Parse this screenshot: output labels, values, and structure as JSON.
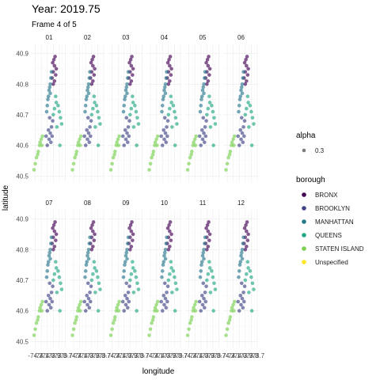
{
  "chart_data": {
    "type": "scatter",
    "title": "Year: 2019.75",
    "subtitle": "Frame 4 of 5",
    "xlabel": "longitude",
    "ylabel": "latitude",
    "facets": [
      "01",
      "02",
      "03",
      "04",
      "05",
      "06",
      "07",
      "08",
      "09",
      "10",
      "11",
      "12"
    ],
    "x_ticks": [
      "-74.2",
      "-74.1",
      "-74.0",
      "-73.9",
      "-73.8",
      "-73.7"
    ],
    "xlim": [
      -74.26,
      -73.68
    ],
    "y_ticks": [
      "40.5",
      "40.6",
      "40.7",
      "40.8",
      "40.9"
    ],
    "ylim": [
      40.48,
      40.93
    ],
    "grid": true,
    "legend_placement": "right",
    "alpha_legend": {
      "title": "alpha",
      "label": "0.3"
    },
    "legend": {
      "title": "borough",
      "entries": [
        {
          "name": "BRONX",
          "color": "#440154"
        },
        {
          "name": "BROOKLYN",
          "color": "#414487"
        },
        {
          "name": "MANHATTAN",
          "color": "#2a788e"
        },
        {
          "name": "QUEENS",
          "color": "#22a884"
        },
        {
          "name": "STATEN ISLAND",
          "color": "#7ad151"
        },
        {
          "name": "Unspecified",
          "color": "#fde725"
        }
      ]
    },
    "series": [
      {
        "name": "BRONX",
        "color": "#440154",
        "x": [
          -73.92,
          -73.9,
          -73.88,
          -73.86,
          -73.89,
          -73.91,
          -73.87,
          -73.85,
          -73.9,
          -73.88
        ],
        "y": [
          40.82,
          40.84,
          40.86,
          40.83,
          40.88,
          40.87,
          40.89,
          40.85,
          40.8,
          40.81
        ]
      },
      {
        "name": "BROOKLYN",
        "color": "#414487",
        "x": [
          -74.0,
          -73.97,
          -73.95,
          -73.93,
          -73.91,
          -73.98,
          -73.96,
          -73.94,
          -73.92,
          -74.02
        ],
        "y": [
          40.6,
          40.62,
          40.64,
          40.66,
          40.68,
          40.65,
          40.69,
          40.61,
          40.63,
          40.63
        ]
      },
      {
        "name": "MANHATTAN",
        "color": "#2a788e",
        "x": [
          -74.01,
          -74.0,
          -73.99,
          -73.98,
          -73.97,
          -73.96,
          -73.95,
          -73.94,
          -73.93,
          -73.95
        ],
        "y": [
          40.71,
          40.73,
          40.75,
          40.76,
          40.78,
          40.79,
          40.8,
          40.82,
          40.84,
          40.77
        ]
      },
      {
        "name": "QUEENS",
        "color": "#22a884",
        "x": [
          -73.9,
          -73.88,
          -73.85,
          -73.82,
          -73.8,
          -73.78,
          -73.76,
          -73.84,
          -73.86,
          -73.79
        ],
        "y": [
          40.7,
          40.72,
          40.74,
          40.73,
          40.71,
          40.69,
          40.67,
          40.66,
          40.76,
          40.6
        ]
      },
      {
        "name": "STATEN ISLAND",
        "color": "#7ad151",
        "x": [
          -74.15,
          -74.13,
          -74.1,
          -74.08,
          -74.2,
          -74.18,
          -74.12,
          -74.22,
          -74.09,
          -74.16
        ],
        "y": [
          40.58,
          40.6,
          40.62,
          40.63,
          40.54,
          40.56,
          40.61,
          40.52,
          40.6,
          40.57
        ]
      }
    ]
  }
}
